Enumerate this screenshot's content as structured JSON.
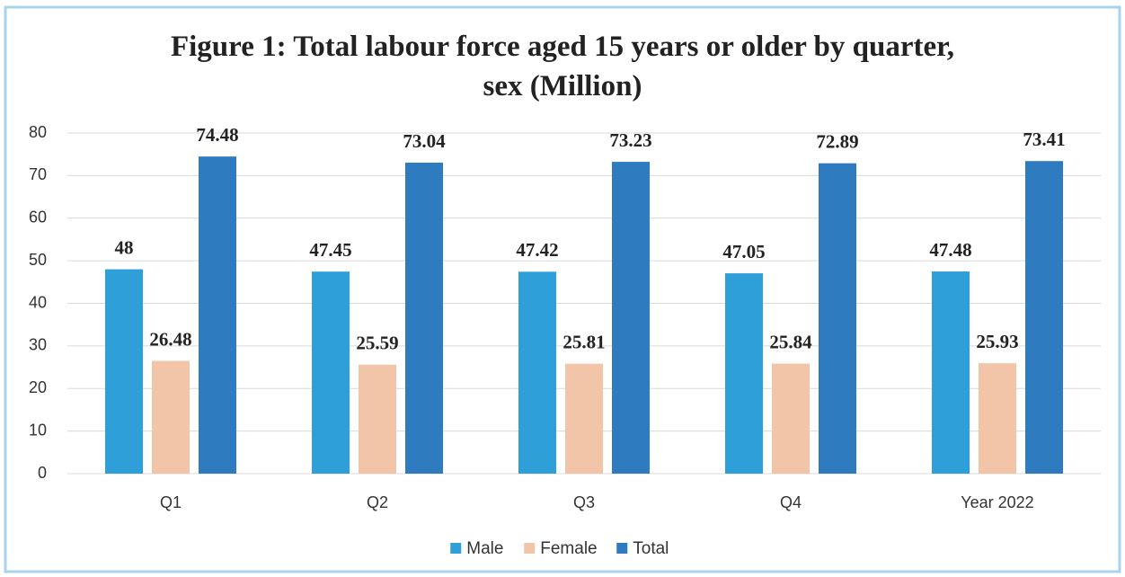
{
  "chart_data": {
    "type": "bar",
    "title": "Figure 1: Total labour force aged 15 years or older by quarter, sex (Million)",
    "categories": [
      "Q1",
      "Q2",
      "Q3",
      "Q4",
      "Year 2022"
    ],
    "series": [
      {
        "name": "Male",
        "color": "#2e9fd9",
        "values": [
          48,
          47.45,
          47.42,
          47.05,
          47.48
        ]
      },
      {
        "name": "Female",
        "color": "#f2c4a8",
        "values": [
          26.48,
          25.59,
          25.81,
          25.84,
          25.93
        ]
      },
      {
        "name": "Total",
        "color": "#2e7bbf",
        "values": [
          74.48,
          73.04,
          73.23,
          72.89,
          73.41
        ]
      }
    ],
    "ylim": [
      0,
      80
    ],
    "yticks": [
      0,
      10,
      20,
      30,
      40,
      50,
      60,
      70,
      80
    ],
    "grid": true,
    "legend": "bottom"
  }
}
